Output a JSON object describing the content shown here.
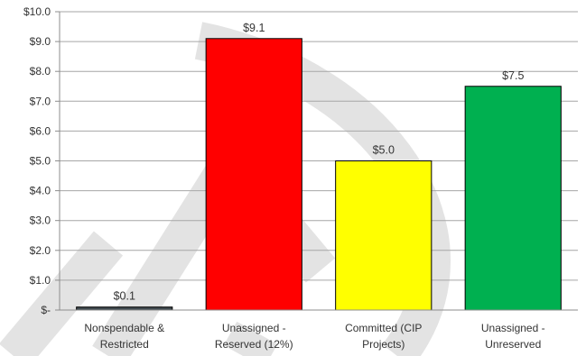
{
  "chart_data": {
    "type": "bar",
    "title": "",
    "xlabel": "",
    "ylabel": "",
    "ylim": [
      0,
      10
    ],
    "grid": true,
    "categories": [
      [
        "Nonspendable &",
        "Restricted"
      ],
      [
        "Unassigned -",
        "Reserved (12%)"
      ],
      [
        "Committed (CIP",
        "Projects)"
      ],
      [
        "Unassigned -",
        "Unreserved"
      ]
    ],
    "values": [
      0.1,
      9.1,
      5.0,
      7.5
    ],
    "data_labels": [
      "$0.1",
      "$9.1",
      "$5.0",
      "$7.5"
    ],
    "bar_colors": [
      "#404a50",
      "#ff0000",
      "#ffff00",
      "#00b050"
    ],
    "y_tick_values": [
      0,
      1,
      2,
      3,
      4,
      5,
      6,
      7,
      8,
      9,
      10
    ],
    "y_tick_labels": [
      "$-",
      "$1.0",
      "$2.0",
      "$3.0",
      "$4.0",
      "$5.0",
      "$6.0",
      "$7.0",
      "$8.0",
      "$9.0",
      "$10.0"
    ],
    "watermark_color": "#e3e3e3"
  }
}
